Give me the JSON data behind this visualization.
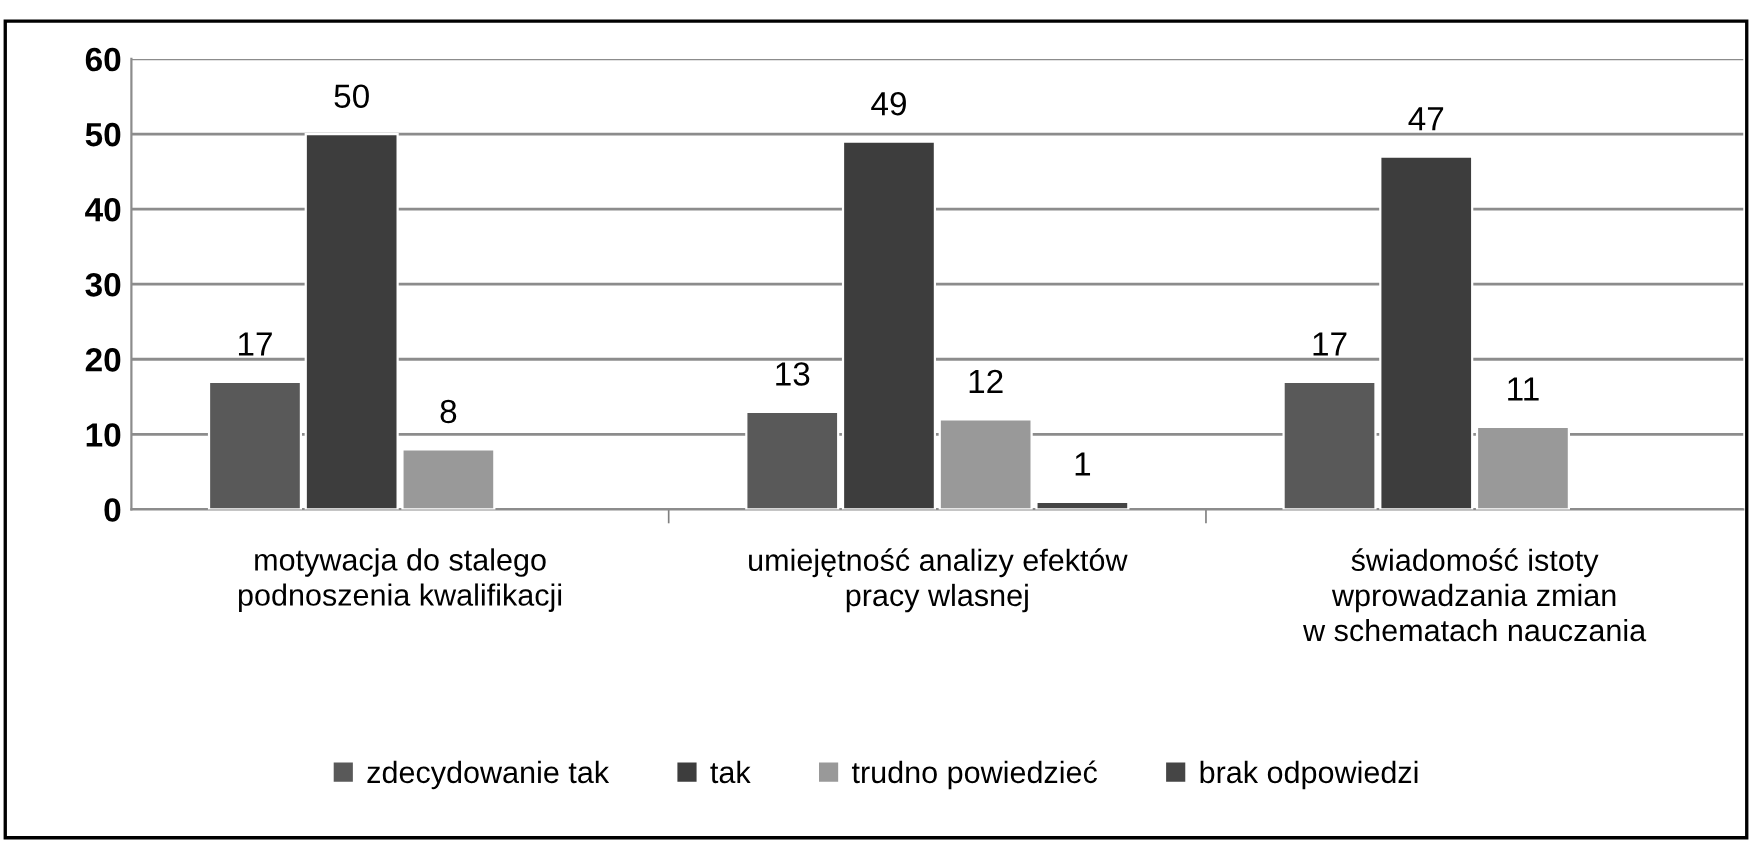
{
  "chart_data": {
    "type": "bar",
    "categories": [
      "motywacja do stalego\npodnoszenia kwalifikacji",
      "umiejętność analizy efektów\npracy wlasnej",
      "świadomość istoty\nwprowadzania zmian\nw schematach nauczania"
    ],
    "series": [
      {
        "name": "zdecydowanie tak",
        "color": "#595959",
        "values": [
          17,
          13,
          17
        ]
      },
      {
        "name": "tak",
        "color": "#3d3d3d",
        "values": [
          50,
          49,
          47
        ]
      },
      {
        "name": "trudno powiedzieć",
        "color": "#999999",
        "values": [
          8,
          12,
          11
        ]
      },
      {
        "name": "brak odpowiedzi",
        "color": "#454545",
        "values": [
          null,
          1,
          null
        ]
      }
    ],
    "ylim": [
      0,
      60
    ],
    "yticks": [
      0,
      10,
      20,
      30,
      40,
      50,
      60
    ],
    "grid": "y",
    "legend": "bottom",
    "data_labels": true
  }
}
